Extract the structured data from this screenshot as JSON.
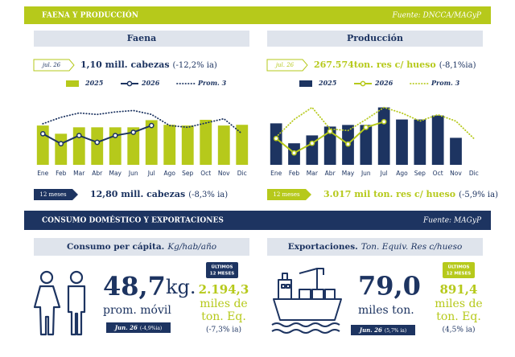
{
  "header": {
    "title": "FAENA Y PRODUCCIÓN",
    "source": "Fuente: DNCCA/MAGyP"
  },
  "chart_data": [
    {
      "type": "bar",
      "title": "Faena",
      "period": "jul. 26",
      "headline_value": "1,10 mill. cabezas",
      "headline_change": "(-12,2% ia)",
      "total_badge": "12 meses",
      "total_value": "12,80 mill. cabezas",
      "total_change": "(-8,3% ia)",
      "categories": [
        "Ene",
        "Feb",
        "Mar",
        "Abr",
        "May",
        "Jun",
        "Jul",
        "Ago",
        "Sep",
        "Oct",
        "Nov",
        "Dic"
      ],
      "ylim": [
        0,
        1.8
      ],
      "series": [
        {
          "name": "2025",
          "mark": "bar",
          "color": "#b6c91b",
          "values": [
            1.1,
            0.87,
            1.05,
            1.05,
            1.05,
            1.05,
            1.25,
            1.12,
            1.1,
            1.26,
            1.1,
            1.12
          ]
        },
        {
          "name": "2026",
          "mark": "line",
          "color": "#1d3461",
          "values": [
            0.87,
            0.59,
            0.82,
            0.63,
            0.82,
            0.91,
            1.1,
            null,
            null,
            null,
            null,
            null
          ]
        },
        {
          "name": "Prom. 3",
          "mark": "dotted",
          "color": "#1d3461",
          "values": [
            1.15,
            1.33,
            1.45,
            1.41,
            1.48,
            1.52,
            1.41,
            1.1,
            1.05,
            1.17,
            1.29,
            0.87
          ]
        }
      ]
    },
    {
      "type": "bar",
      "title": "Producción",
      "period": "jul. 26",
      "headline_value": "267.574ton. res c/ hueso",
      "headline_change": "(-8,1%ia)",
      "total_badge": "12 meses",
      "total_value": "3.017 mil ton. res c/ hueso",
      "total_change": "(-5,9% ia)",
      "categories": [
        "Ene",
        "Feb",
        "Mar",
        "Abr",
        "May",
        "Jun",
        "Jul",
        "Ago",
        "Sep",
        "Oct",
        "Nov",
        "Dic"
      ],
      "ylim": [
        0,
        400000
      ],
      "series": [
        {
          "name": "2025",
          "mark": "bar",
          "color": "#1d3461",
          "values": [
            258000,
            134000,
            183000,
            238000,
            248000,
            248000,
            357000,
            282000,
            282000,
            307000,
            168000,
            null
          ]
        },
        {
          "name": "2026",
          "mark": "line",
          "color": "#b6c91b",
          "values": [
            164000,
            74000,
            134000,
            208000,
            129000,
            233000,
            268000,
            null,
            null,
            null,
            null,
            null
          ]
        },
        {
          "name": "Prom. 3",
          "mark": "dotted",
          "color": "#b6c91b",
          "values": [
            173000,
            282000,
            357000,
            223000,
            213000,
            282000,
            357000,
            322000,
            272000,
            312000,
            272000,
            164000
          ]
        }
      ]
    }
  ],
  "section2": {
    "title": "CONSUMO DOMÉSTICO Y EXPORTACIONES",
    "source": "Fuente: MAGyP"
  },
  "consumo": {
    "title": "Consumo per cápita.",
    "unit": "Kg/hab/año",
    "value": "48,7",
    "value_unit": "kg.",
    "note": "prom. móvil",
    "period": "Jun. 26",
    "change": "(-4,9%ia)",
    "badge": [
      "ÚLTIMOS",
      "12 MESES"
    ],
    "total": "2.194,3",
    "total_unit": [
      "miles de",
      "ton. Eq."
    ],
    "total_change": "(-7,3% ia)"
  },
  "exportaciones": {
    "title": "Exportaciones.",
    "unit": "Ton. Equiv. Res c/hueso",
    "value": "79,0",
    "value_unit": "miles ton.",
    "period": "Jun. 26",
    "change": "(5,7% ia)",
    "badge": [
      "ÚLTIMOS",
      "12 MESES"
    ],
    "total": "891,4",
    "total_unit": [
      "miles de",
      "ton. Eq."
    ],
    "total_change": "(4,5% ia)"
  }
}
